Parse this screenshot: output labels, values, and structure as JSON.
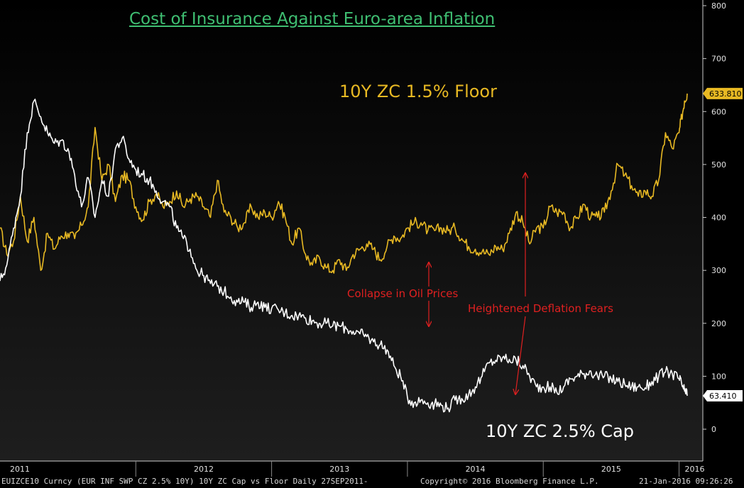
{
  "chart_data": {
    "type": "line",
    "title": "Cost of Insurance Against Euro-area Inflation",
    "y_axis": {
      "position": "right",
      "ylim": [
        -20,
        800
      ],
      "ticks": [
        0,
        100,
        200,
        300,
        400,
        500,
        600,
        700,
        800
      ]
    },
    "x_axis": {
      "xlim": [
        2011.0,
        2016.06
      ],
      "year_labels": [
        "2011",
        "2012",
        "2013",
        "2014",
        "2015",
        "2016"
      ],
      "year_boundaries": [
        2011.0,
        2012.0,
        2013.0,
        2014.0,
        2015.0,
        2016.0
      ]
    },
    "series": [
      {
        "name": "10Y ZC 1.5% Floor",
        "color": "#e8b923",
        "last_value_label": "633.810",
        "points": [
          [
            2011.0,
            380
          ],
          [
            2011.05,
            330
          ],
          [
            2011.1,
            355
          ],
          [
            2011.15,
            440
          ],
          [
            2011.2,
            355
          ],
          [
            2011.25,
            400
          ],
          [
            2011.3,
            300
          ],
          [
            2011.35,
            370
          ],
          [
            2011.4,
            340
          ],
          [
            2011.45,
            365
          ],
          [
            2011.5,
            370
          ],
          [
            2011.55,
            360
          ],
          [
            2011.6,
            385
          ],
          [
            2011.65,
            420
          ],
          [
            2011.7,
            570
          ],
          [
            2011.75,
            470
          ],
          [
            2011.8,
            500
          ],
          [
            2011.85,
            430
          ],
          [
            2011.9,
            480
          ],
          [
            2011.95,
            470
          ],
          [
            2012.0,
            420
          ],
          [
            2012.05,
            395
          ],
          [
            2012.1,
            430
          ],
          [
            2012.15,
            445
          ],
          [
            2012.2,
            420
          ],
          [
            2012.25,
            430
          ],
          [
            2012.3,
            450
          ],
          [
            2012.35,
            420
          ],
          [
            2012.4,
            435
          ],
          [
            2012.45,
            440
          ],
          [
            2012.5,
            420
          ],
          [
            2012.55,
            400
          ],
          [
            2012.6,
            470
          ],
          [
            2012.65,
            410
          ],
          [
            2012.7,
            400
          ],
          [
            2012.75,
            380
          ],
          [
            2012.8,
            390
          ],
          [
            2012.85,
            420
          ],
          [
            2012.9,
            400
          ],
          [
            2012.95,
            410
          ],
          [
            2013.0,
            400
          ],
          [
            2013.05,
            430
          ],
          [
            2013.1,
            400
          ],
          [
            2013.15,
            350
          ],
          [
            2013.2,
            380
          ],
          [
            2013.25,
            330
          ],
          [
            2013.3,
            310
          ],
          [
            2013.35,
            325
          ],
          [
            2013.4,
            305
          ],
          [
            2013.45,
            300
          ],
          [
            2013.5,
            320
          ],
          [
            2013.55,
            300
          ],
          [
            2013.6,
            330
          ],
          [
            2013.65,
            340
          ],
          [
            2013.7,
            350
          ],
          [
            2013.75,
            340
          ],
          [
            2013.8,
            320
          ],
          [
            2013.85,
            345
          ],
          [
            2013.9,
            365
          ],
          [
            2013.95,
            360
          ],
          [
            2014.0,
            380
          ],
          [
            2014.05,
            390
          ],
          [
            2014.1,
            390
          ],
          [
            2014.15,
            375
          ],
          [
            2014.2,
            375
          ],
          [
            2014.25,
            380
          ],
          [
            2014.3,
            375
          ],
          [
            2014.35,
            380
          ],
          [
            2014.4,
            360
          ],
          [
            2014.45,
            345
          ],
          [
            2014.5,
            340
          ],
          [
            2014.55,
            335
          ],
          [
            2014.6,
            330
          ],
          [
            2014.65,
            345
          ],
          [
            2014.7,
            340
          ],
          [
            2014.75,
            370
          ],
          [
            2014.8,
            410
          ],
          [
            2014.85,
            390
          ],
          [
            2014.9,
            350
          ],
          [
            2014.95,
            380
          ],
          [
            2015.0,
            380
          ],
          [
            2015.05,
            420
          ],
          [
            2015.1,
            410
          ],
          [
            2015.15,
            410
          ],
          [
            2015.2,
            380
          ],
          [
            2015.25,
            400
          ],
          [
            2015.3,
            425
          ],
          [
            2015.35,
            400
          ],
          [
            2015.4,
            400
          ],
          [
            2015.45,
            410
          ],
          [
            2015.5,
            450
          ],
          [
            2015.55,
            500
          ],
          [
            2015.6,
            480
          ],
          [
            2015.65,
            460
          ],
          [
            2015.7,
            440
          ],
          [
            2015.75,
            450
          ],
          [
            2015.8,
            440
          ],
          [
            2015.85,
            470
          ],
          [
            2015.9,
            560
          ],
          [
            2015.95,
            530
          ],
          [
            2016.0,
            560
          ],
          [
            2016.02,
            590
          ],
          [
            2016.04,
            620
          ],
          [
            2016.06,
            634
          ]
        ]
      },
      {
        "name": "10Y ZC 2.5% Cap",
        "color": "#ffffff",
        "last_value_label": "63.410",
        "points": [
          [
            2011.0,
            280
          ],
          [
            2011.05,
            310
          ],
          [
            2011.1,
            380
          ],
          [
            2011.15,
            440
          ],
          [
            2011.2,
            560
          ],
          [
            2011.25,
            620
          ],
          [
            2011.3,
            590
          ],
          [
            2011.35,
            560
          ],
          [
            2011.4,
            540
          ],
          [
            2011.45,
            545
          ],
          [
            2011.5,
            530
          ],
          [
            2011.55,
            480
          ],
          [
            2011.6,
            420
          ],
          [
            2011.65,
            475
          ],
          [
            2011.7,
            400
          ],
          [
            2011.75,
            470
          ],
          [
            2011.8,
            440
          ],
          [
            2011.85,
            530
          ],
          [
            2011.9,
            550
          ],
          [
            2011.95,
            510
          ],
          [
            2012.0,
            490
          ],
          [
            2012.05,
            480
          ],
          [
            2012.1,
            470
          ],
          [
            2012.15,
            450
          ],
          [
            2012.2,
            430
          ],
          [
            2012.25,
            420
          ],
          [
            2012.3,
            380
          ],
          [
            2012.35,
            360
          ],
          [
            2012.4,
            340
          ],
          [
            2012.45,
            300
          ],
          [
            2012.5,
            290
          ],
          [
            2012.55,
            275
          ],
          [
            2012.6,
            270
          ],
          [
            2012.65,
            260
          ],
          [
            2012.7,
            250
          ],
          [
            2012.75,
            240
          ],
          [
            2012.8,
            240
          ],
          [
            2012.85,
            230
          ],
          [
            2012.9,
            240
          ],
          [
            2012.95,
            230
          ],
          [
            2013.0,
            228
          ],
          [
            2013.05,
            225
          ],
          [
            2013.1,
            220
          ],
          [
            2013.15,
            215
          ],
          [
            2013.2,
            215
          ],
          [
            2013.25,
            210
          ],
          [
            2013.3,
            205
          ],
          [
            2013.35,
            200
          ],
          [
            2013.4,
            200
          ],
          [
            2013.45,
            195
          ],
          [
            2013.5,
            195
          ],
          [
            2013.55,
            190
          ],
          [
            2013.6,
            185
          ],
          [
            2013.65,
            180
          ],
          [
            2013.7,
            175
          ],
          [
            2013.75,
            165
          ],
          [
            2013.8,
            160
          ],
          [
            2013.85,
            150
          ],
          [
            2013.9,
            120
          ],
          [
            2013.95,
            100
          ],
          [
            2014.0,
            60
          ],
          [
            2014.05,
            50
          ],
          [
            2014.1,
            55
          ],
          [
            2014.15,
            50
          ],
          [
            2014.2,
            48
          ],
          [
            2014.25,
            45
          ],
          [
            2014.3,
            40
          ],
          [
            2014.35,
            55
          ],
          [
            2014.4,
            58
          ],
          [
            2014.45,
            65
          ],
          [
            2014.5,
            80
          ],
          [
            2014.55,
            100
          ],
          [
            2014.6,
            125
          ],
          [
            2014.65,
            130
          ],
          [
            2014.7,
            135
          ],
          [
            2014.75,
            132
          ],
          [
            2014.8,
            130
          ],
          [
            2014.85,
            120
          ],
          [
            2014.9,
            100
          ],
          [
            2014.95,
            80
          ],
          [
            2015.0,
            80
          ],
          [
            2015.05,
            80
          ],
          [
            2015.1,
            70
          ],
          [
            2015.15,
            80
          ],
          [
            2015.2,
            95
          ],
          [
            2015.25,
            100
          ],
          [
            2015.3,
            105
          ],
          [
            2015.35,
            110
          ],
          [
            2015.4,
            100
          ],
          [
            2015.45,
            100
          ],
          [
            2015.5,
            95
          ],
          [
            2015.55,
            90
          ],
          [
            2015.6,
            85
          ],
          [
            2015.65,
            80
          ],
          [
            2015.7,
            80
          ],
          [
            2015.75,
            78
          ],
          [
            2015.8,
            90
          ],
          [
            2015.85,
            100
          ],
          [
            2015.9,
            108
          ],
          [
            2015.95,
            105
          ],
          [
            2016.0,
            95
          ],
          [
            2016.02,
            85
          ],
          [
            2016.04,
            72
          ],
          [
            2016.06,
            63
          ]
        ]
      }
    ],
    "annotations": [
      {
        "text": "Collapse in Oil Prices"
      },
      {
        "text": "Heightened Deflation Fears"
      }
    ]
  },
  "labels": {
    "floor": "10Y ZC 1.5% Floor",
    "cap": "10Y ZC 2.5% Cap",
    "annot_oil": "Collapse in Oil Prices",
    "annot_deflation": "Heightened Deflation Fears"
  },
  "footer": {
    "left": "EUIZCE10 Curncy (EUR INF SWP CZ 2.5%  10Y) 10Y ZC Cap vs Floor  Daily 27SEP2011-",
    "middle": "Copyright© 2016 Bloomberg Finance L.P.",
    "right": "21-Jan-2016 09:26:26"
  },
  "colors": {
    "background": "#000000",
    "title": "#3fbf72",
    "annotation": "#e02020",
    "axis": "#cccccc"
  }
}
